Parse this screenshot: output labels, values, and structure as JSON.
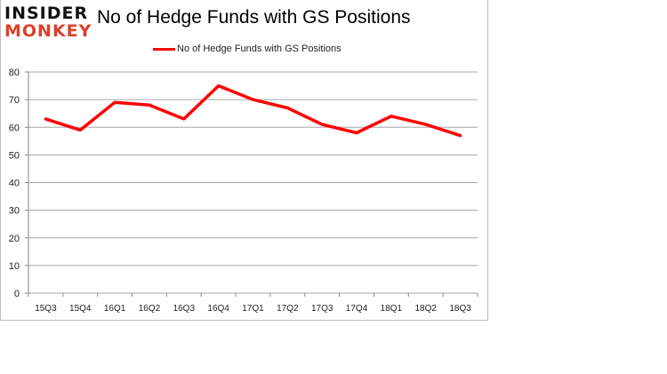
{
  "logo": {
    "line1": "INSIDER",
    "line2": "MONKEY"
  },
  "chart_data": {
    "type": "line",
    "title": "No of Hedge Funds with GS Positions",
    "xlabel": "",
    "ylabel": "",
    "categories": [
      "15Q3",
      "15Q4",
      "16Q1",
      "16Q2",
      "16Q3",
      "16Q4",
      "17Q1",
      "17Q2",
      "17Q3",
      "17Q4",
      "18Q1",
      "18Q2",
      "18Q3"
    ],
    "series": [
      {
        "name": "No of Hedge Funds with GS Positions",
        "color": "#ff0000",
        "values": [
          63,
          59,
          69,
          68,
          63,
          75,
          70,
          67,
          61,
          58,
          64,
          61,
          57
        ]
      }
    ],
    "ylim": [
      0,
      80
    ],
    "yticks": [
      0,
      10,
      20,
      30,
      40,
      50,
      60,
      70,
      80
    ],
    "grid": true,
    "legend_position": "top"
  }
}
